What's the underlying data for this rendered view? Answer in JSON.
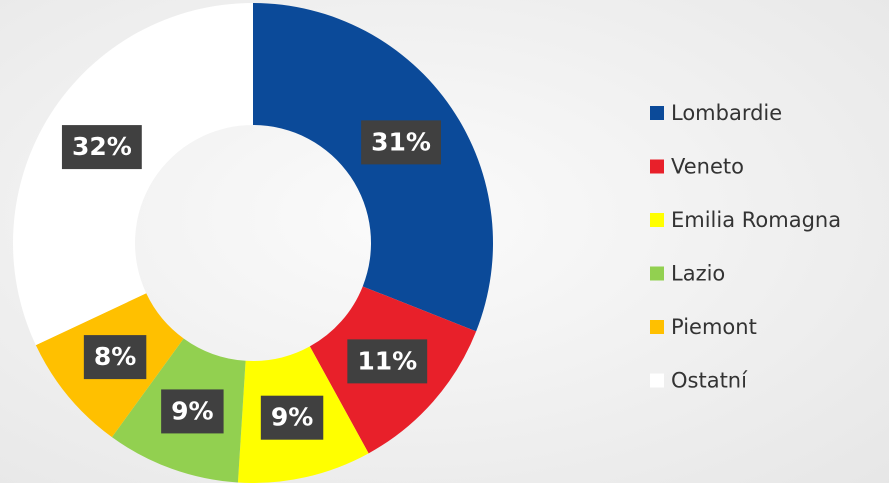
{
  "chart_data": {
    "type": "donut",
    "categories": [
      "Lombardie",
      "Veneto",
      "Emilia Romagna",
      "Lazio",
      "Piemont",
      "Ostatní"
    ],
    "values": [
      31,
      11,
      9,
      9,
      8,
      32
    ],
    "value_labels": [
      "31%",
      "11%",
      "9%",
      "9%",
      "8%",
      "32%"
    ],
    "colors": [
      "#0b4a99",
      "#e8202a",
      "#ffff00",
      "#92d050",
      "#ffc000",
      "#ffffff"
    ],
    "legend": "right"
  }
}
